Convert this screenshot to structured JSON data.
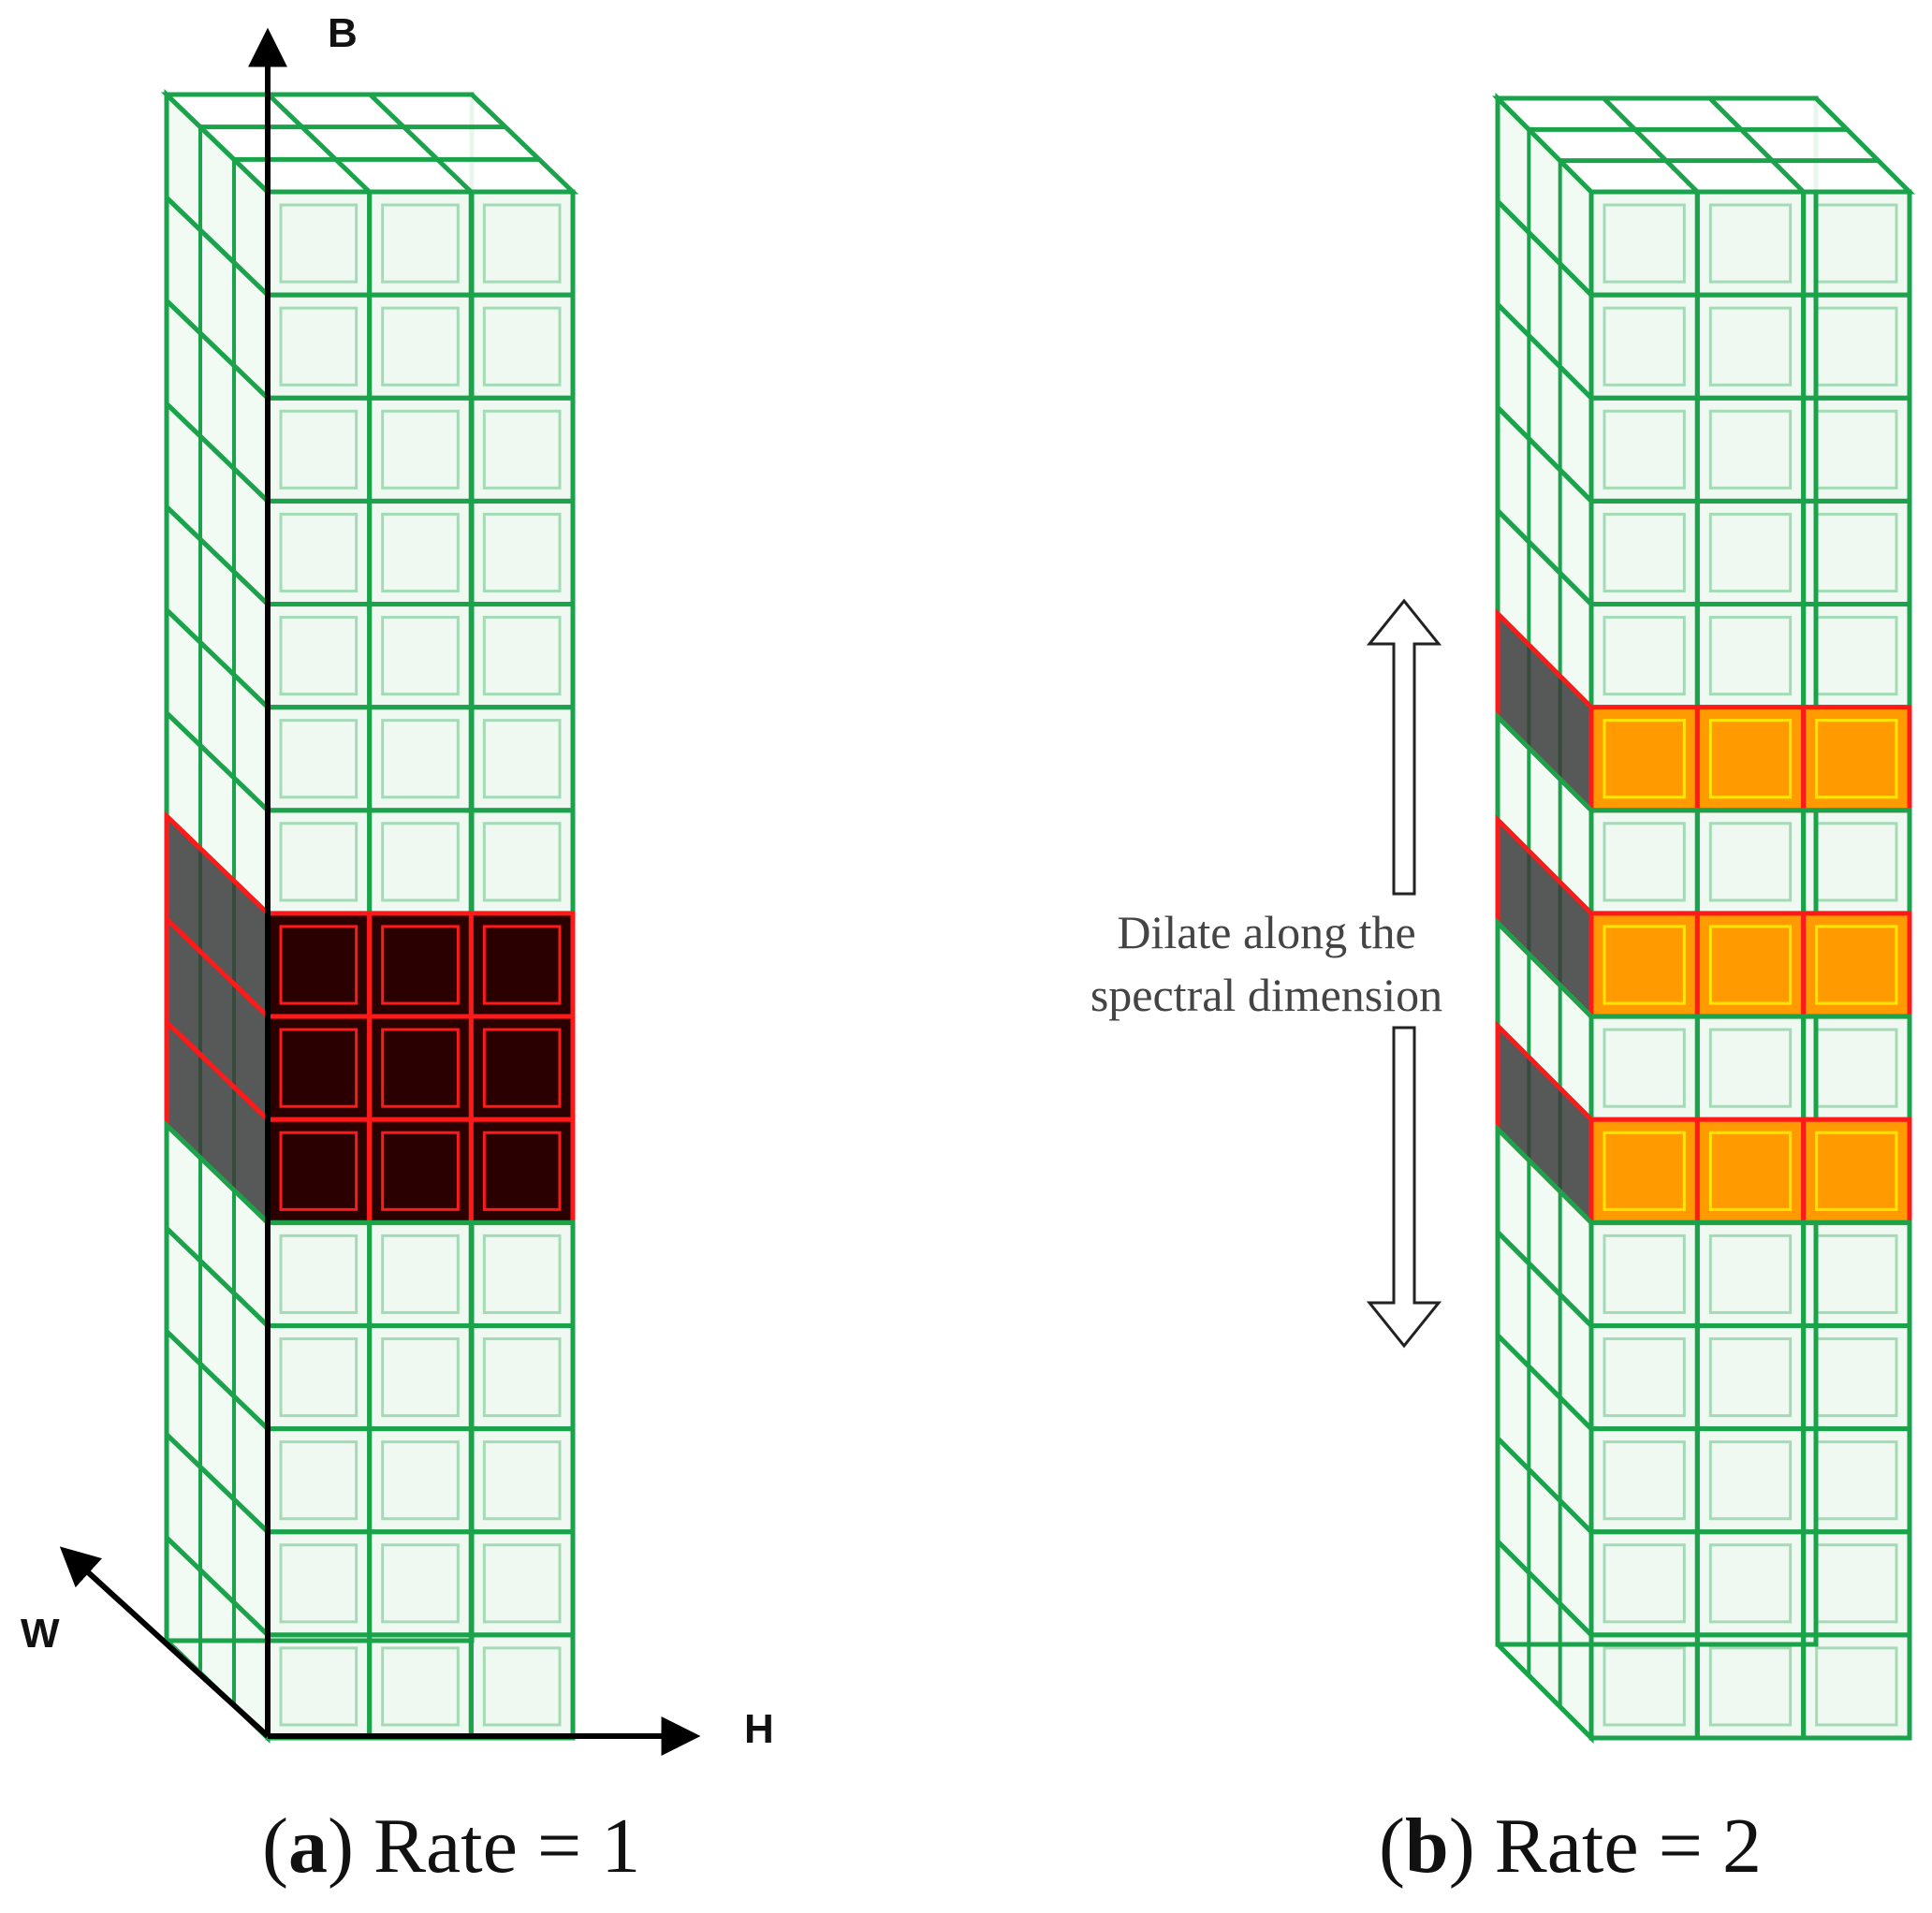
{
  "axes": {
    "b_label": "B",
    "w_label": "W",
    "h_label": "H"
  },
  "annotation": {
    "line1": "Dilate along the",
    "line2": "spectral dimension"
  },
  "captions": {
    "a": {
      "open": "(",
      "letter": "a",
      "rest": ") Rate = 1"
    },
    "b": {
      "open": "(",
      "letter": "b",
      "rest": ") Rate = 2"
    }
  },
  "panel_a": {
    "rate": 1,
    "total_layers": 15,
    "kernel_layers": [
      7,
      8,
      9
    ]
  },
  "panel_b": {
    "rate": 2,
    "total_layers": 15,
    "kernel_layers": [
      5,
      7,
      9
    ]
  },
  "colors": {
    "grid": "#1aa34a",
    "kernel": "#ff1a1a",
    "dark": "#2b0000",
    "orange": "#ff9a00",
    "yellow": "#ffe600",
    "axis": "#000000"
  }
}
